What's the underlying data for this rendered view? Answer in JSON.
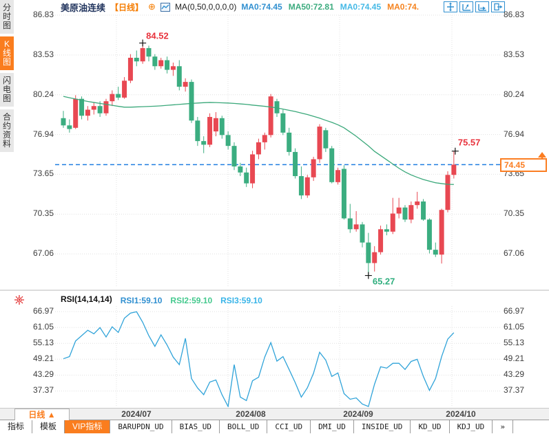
{
  "header": {
    "title": "美原油连续",
    "period_tag": "【日线】",
    "plus_badge": "⊕",
    "ma_formula": "MA(0,50,0,0,0,0)",
    "ma_values": [
      {
        "label": "MA0:74.45",
        "color": "#2f8fd0"
      },
      {
        "label": "MA50:72.81",
        "color": "#3cab7e"
      },
      {
        "label": "MA0:74.45",
        "color": "#45b9e6"
      },
      {
        "label": "MA0:74.",
        "color": "#f5831f"
      }
    ],
    "toolbar_icons": [
      "move-crosshair-icon",
      "axis-zoom-up-icon",
      "axis-zoom-right-icon",
      "exit-panel-icon"
    ]
  },
  "sidebar": {
    "tabs": [
      {
        "label": "分时图",
        "active": false
      },
      {
        "label": "K线图",
        "active": true
      },
      {
        "label": "闪电图",
        "active": false
      },
      {
        "label": "合约资料",
        "active": false
      }
    ]
  },
  "rsi_header": {
    "formula": "RSI(14,14,14)",
    "values": [
      {
        "label": "RSI1:59.10",
        "color": "#2f8fd0"
      },
      {
        "label": "RSI2:59.10",
        "color": "#45c98e"
      },
      {
        "label": "RSI3:59.10",
        "color": "#38b4e8"
      }
    ]
  },
  "price_marks": {
    "high": "84.52",
    "low": "65.27",
    "recent_high": "75.57",
    "current": "74.45"
  },
  "xaxis": {
    "period_selector": "日线 ▲",
    "dates": [
      "2024/07",
      "2024/08",
      "2024/09",
      "2024/10"
    ],
    "date_centers": [
      198,
      364,
      520,
      669
    ]
  },
  "bottom_tabs": [
    {
      "label": "指标",
      "mono": false,
      "active": false
    },
    {
      "label": "模板",
      "mono": false,
      "active": false
    },
    {
      "label": "VIP指标",
      "mono": false,
      "active": true
    },
    {
      "label": "BARUPDN_UD",
      "mono": true,
      "active": false
    },
    {
      "label": "BIAS_UD",
      "mono": true,
      "active": false
    },
    {
      "label": "BOLL_UD",
      "mono": true,
      "active": false
    },
    {
      "label": "CCI_UD",
      "mono": true,
      "active": false
    },
    {
      "label": "DMI_UD",
      "mono": true,
      "active": false
    },
    {
      "label": "INSIDE_UD",
      "mono": true,
      "active": false
    },
    {
      "label": "KD_UD",
      "mono": true,
      "active": false
    },
    {
      "label": "KDJ_UD",
      "mono": true,
      "active": false
    },
    {
      "label": "»",
      "mono": true,
      "active": false
    }
  ],
  "chart_data": {
    "type": "candlestick",
    "title": "美原油连续 日线 (US Crude Oil Continuous, daily)",
    "up_color": "#e84852",
    "down_color": "#3bad80",
    "ma_color": "#3aa87a",
    "rsi_color": "#2fa3d9",
    "dashed_line_color": "#1e7ee0",
    "price_axis_ticks": [
      86.83,
      83.53,
      80.24,
      76.94,
      73.65,
      70.35,
      67.06
    ],
    "rsi_axis_ticks": [
      66.97,
      61.05,
      55.13,
      49.21,
      43.29,
      37.37
    ],
    "x_month_labels": [
      "2024/07",
      "2024/08",
      "2024/09",
      "2024/10"
    ],
    "last_price": 74.45,
    "high_mark": {
      "value": 84.52,
      "index": 13
    },
    "low_mark": {
      "value": 65.27,
      "index": 50
    },
    "recent_high_mark": {
      "value": 75.57,
      "index": 64
    },
    "candles_ohlc": [
      [
        78.3,
        78.9,
        77.5,
        77.7
      ],
      [
        77.7,
        78.2,
        77.1,
        77.4
      ],
      [
        77.5,
        80.2,
        77.4,
        79.9
      ],
      [
        79.9,
        80.1,
        78.2,
        78.5
      ],
      [
        78.5,
        79.3,
        78.1,
        79.0
      ],
      [
        79.0,
        79.6,
        78.6,
        79.3
      ],
      [
        79.3,
        79.7,
        78.4,
        78.7
      ],
      [
        78.7,
        79.9,
        78.5,
        79.7
      ],
      [
        79.7,
        80.6,
        79.3,
        80.3
      ],
      [
        80.3,
        80.9,
        79.8,
        80.0
      ],
      [
        80.0,
        81.7,
        79.9,
        81.4
      ],
      [
        81.4,
        83.6,
        81.2,
        83.3
      ],
      [
        83.3,
        83.9,
        82.6,
        83.0
      ],
      [
        83.0,
        84.52,
        82.8,
        84.1
      ],
      [
        84.1,
        84.3,
        83.0,
        83.4
      ],
      [
        83.4,
        83.6,
        82.3,
        82.6
      ],
      [
        82.6,
        83.3,
        82.4,
        83.1
      ],
      [
        83.1,
        83.4,
        82.0,
        82.3
      ],
      [
        82.3,
        82.9,
        81.8,
        82.6
      ],
      [
        82.6,
        83.1,
        80.6,
        80.9
      ],
      [
        80.9,
        81.6,
        80.5,
        81.3
      ],
      [
        81.3,
        81.5,
        77.9,
        78.1
      ],
      [
        78.1,
        78.4,
        76.0,
        76.4
      ],
      [
        76.4,
        76.8,
        75.4,
        76.1
      ],
      [
        76.1,
        78.7,
        75.9,
        78.4
      ],
      [
        77.2,
        78.8,
        76.8,
        78.3
      ],
      [
        78.3,
        78.5,
        76.6,
        76.9
      ],
      [
        76.9,
        77.2,
        75.7,
        76.0
      ],
      [
        76.0,
        76.3,
        74.0,
        74.3
      ],
      [
        74.3,
        74.6,
        73.5,
        73.8
      ],
      [
        73.8,
        74.2,
        72.6,
        72.9
      ],
      [
        72.9,
        75.6,
        72.5,
        75.3
      ],
      [
        75.3,
        76.6,
        74.9,
        76.3
      ],
      [
        76.3,
        77.1,
        75.7,
        76.9
      ],
      [
        76.9,
        80.3,
        76.7,
        80.1
      ],
      [
        79.7,
        79.9,
        78.4,
        78.7
      ],
      [
        78.7,
        79.0,
        76.9,
        77.1
      ],
      [
        77.1,
        77.5,
        75.2,
        75.5
      ],
      [
        75.5,
        75.8,
        73.3,
        73.5
      ],
      [
        73.5,
        74.3,
        71.6,
        71.9
      ],
      [
        71.9,
        73.6,
        71.7,
        73.4
      ],
      [
        73.4,
        75.1,
        73.1,
        74.9
      ],
      [
        74.9,
        77.8,
        74.6,
        77.6
      ],
      [
        77.3,
        77.5,
        75.5,
        75.8
      ],
      [
        75.8,
        76.0,
        72.9,
        73.0
      ],
      [
        73.0,
        74.2,
        72.8,
        74.0
      ],
      [
        74.1,
        74.4,
        69.9,
        70.0
      ],
      [
        70.0,
        71.2,
        68.8,
        69.1
      ],
      [
        69.1,
        70.6,
        68.9,
        69.5
      ],
      [
        69.5,
        69.7,
        67.6,
        68.0
      ],
      [
        68.0,
        68.8,
        65.27,
        66.3
      ],
      [
        66.3,
        67.7,
        65.6,
        67.2
      ],
      [
        67.2,
        69.4,
        67.0,
        69.1
      ],
      [
        69.1,
        69.5,
        68.6,
        68.9
      ],
      [
        68.9,
        71.7,
        68.7,
        70.4
      ],
      [
        70.4,
        71.7,
        70.0,
        70.9
      ],
      [
        70.9,
        71.1,
        69.7,
        69.9
      ],
      [
        69.9,
        71.4,
        69.6,
        71.1
      ],
      [
        71.1,
        72.2,
        70.8,
        71.4
      ],
      [
        71.4,
        71.6,
        69.8,
        69.9
      ],
      [
        69.9,
        70.0,
        67.1,
        67.4
      ],
      [
        67.4,
        68.0,
        66.8,
        67.0
      ],
      [
        67.0,
        70.8,
        66.26,
        70.7
      ],
      [
        70.7,
        73.9,
        70.5,
        73.6
      ],
      [
        73.6,
        75.57,
        73.3,
        74.45
      ]
    ],
    "ma50": [
      80.1,
      79.99,
      79.89,
      79.78,
      79.68,
      79.6,
      79.52,
      79.44,
      79.36,
      79.28,
      79.21,
      79.21,
      79.23,
      79.25,
      79.27,
      79.29,
      79.32,
      79.36,
      79.4,
      79.44,
      79.48,
      79.52,
      79.55,
      79.58,
      79.6,
      79.59,
      79.57,
      79.55,
      79.52,
      79.48,
      79.44,
      79.38,
      79.33,
      79.28,
      79.22,
      79.15,
      79.05,
      78.95,
      78.85,
      78.72,
      78.6,
      78.45,
      78.3,
      78.12,
      77.95,
      77.75,
      77.5,
      77.15,
      76.8,
      76.4,
      76.0,
      75.55,
      75.2,
      74.85,
      74.5,
      74.15,
      73.85,
      73.6,
      73.4,
      73.22,
      73.08,
      72.95,
      72.88,
      72.82,
      72.81
    ],
    "rsi1": [
      49.4,
      50.2,
      56.0,
      58.0,
      60.0,
      58.7,
      61.0,
      57.5,
      61.3,
      59.2,
      64.5,
      66.4,
      66.9,
      63.0,
      58.0,
      54.0,
      58.3,
      54.5,
      50.0,
      47.2,
      57.0,
      42.0,
      38.5,
      36.0,
      40.7,
      41.5,
      36.0,
      31.2,
      47.2,
      35.1,
      33.8,
      41.2,
      42.5,
      50.0,
      55.4,
      48.5,
      50.2,
      45.4,
      40.5,
      35.1,
      38.6,
      44.0,
      51.8,
      48.9,
      42.8,
      44.1,
      36.4,
      34.3,
      34.8,
      32.5,
      30.9,
      39.9,
      46.4,
      45.9,
      47.7,
      47.7,
      45.4,
      48.4,
      49.2,
      42.8,
      37.6,
      42.0,
      50.2,
      56.7,
      59.1
    ]
  }
}
